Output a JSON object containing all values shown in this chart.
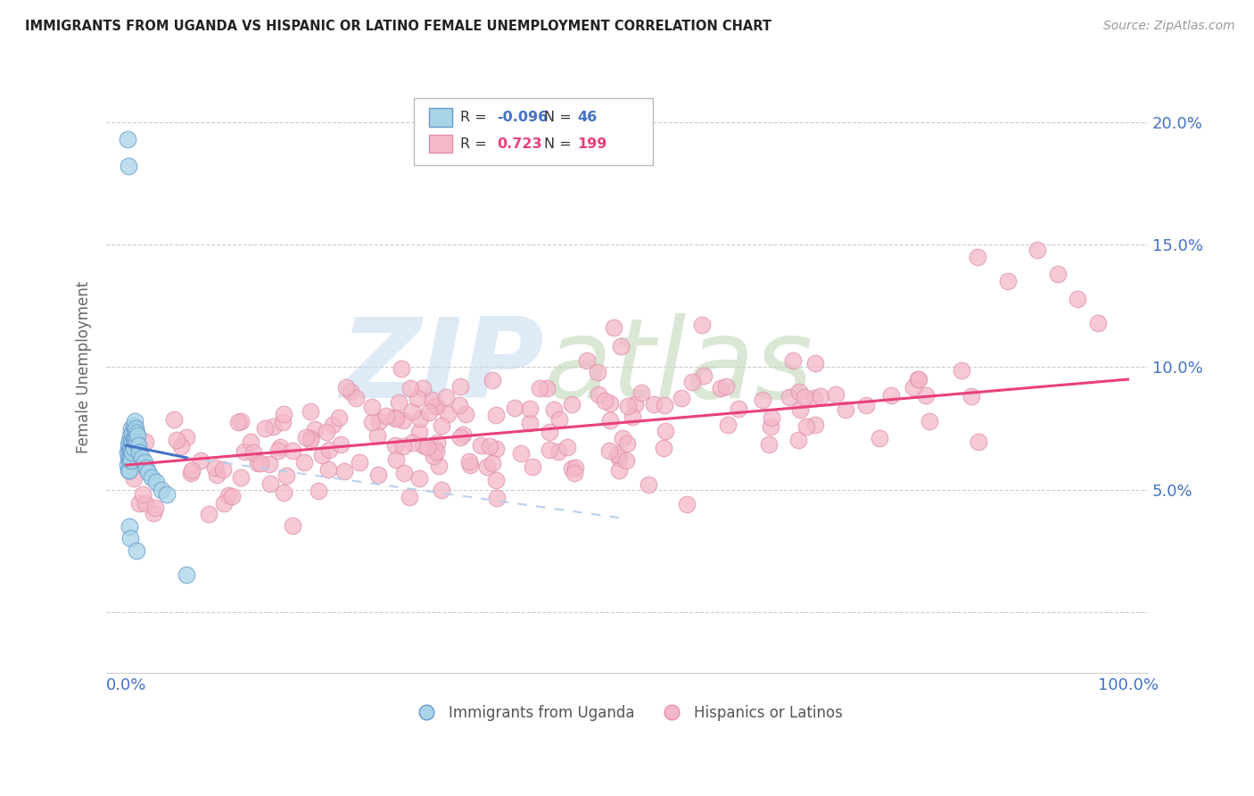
{
  "title": "IMMIGRANTS FROM UGANDA VS HISPANIC OR LATINO FEMALE UNEMPLOYMENT CORRELATION CHART",
  "source_text": "Source: ZipAtlas.com",
  "ylabel": "Female Unemployment",
  "watermark_zip": "ZIP",
  "watermark_atlas": "atlas",
  "legend_blue_r": "-0.096",
  "legend_blue_n": "46",
  "legend_pink_r": "0.723",
  "legend_pink_n": "199",
  "legend_label_blue": "Immigrants from Uganda",
  "legend_label_pink": "Hispanics or Latinos",
  "yticks": [
    0.0,
    0.05,
    0.1,
    0.15,
    0.2
  ],
  "ytick_labels": [
    "",
    "5.0%",
    "10.0%",
    "15.0%",
    "20.0%"
  ],
  "xlim": [
    -0.02,
    1.02
  ],
  "ylim": [
    -0.025,
    0.225
  ],
  "color_blue": "#A8D4E8",
  "color_blue_edge": "#6699CC",
  "color_blue_line": "#4472C4",
  "color_blue_line_dash": "#B8D0EE",
  "color_pink": "#F4B8C8",
  "color_pink_edge": "#E090A8",
  "color_pink_line": "#E8407A",
  "color_title": "#222222",
  "color_source": "#999999",
  "color_axis_labels": "#4472C4",
  "color_grid": "#CCCCCC",
  "color_watermark_zip": "#C8DCF0",
  "color_watermark_atlas": "#C0D8B8",
  "background_color": "#FFFFFF"
}
